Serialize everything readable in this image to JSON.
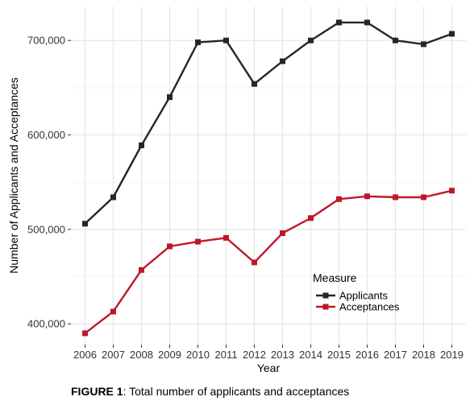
{
  "chart_data": {
    "type": "line",
    "categories": [
      "2006",
      "2007",
      "2008",
      "2009",
      "2010",
      "2011",
      "2012",
      "2013",
      "2014",
      "2015",
      "2016",
      "2017",
      "2018",
      "2019"
    ],
    "series": [
      {
        "name": "Applicants",
        "color": "#1f2a26",
        "values": [
          506000,
          534000,
          589000,
          640000,
          698000,
          700000,
          654000,
          678000,
          700000,
          719000,
          719000,
          700000,
          696000,
          707000
        ]
      },
      {
        "name": "Acceptances",
        "color": "#c0162a",
        "values": [
          390000,
          413000,
          457000,
          482000,
          487000,
          491000,
          465000,
          496000,
          512000,
          532000,
          535000,
          534000,
          534000,
          541000
        ]
      }
    ],
    "xlabel": "Year",
    "ylabel": "Number of Applicants and Acceptances",
    "ylim": [
      378000,
      736000
    ],
    "yticks": [
      400000,
      500000,
      600000,
      700000
    ],
    "ytick_labels": [
      "400,000",
      "500,000",
      "600,000",
      "700,000"
    ],
    "grid": true,
    "legend": {
      "title": "Measure",
      "position": "bottom-right"
    }
  },
  "caption": {
    "label": "FIGURE 1",
    "text": ": Total number of applicants and acceptances"
  }
}
